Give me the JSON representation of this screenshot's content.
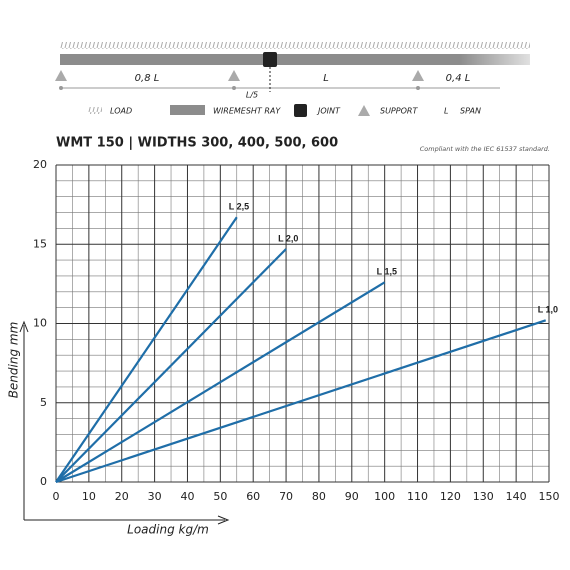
{
  "diagram": {
    "spans": [
      "0,8 L",
      "L",
      "0,4 L"
    ],
    "joint_offset": "L/5",
    "legend": [
      {
        "symbol": "LOAD"
      },
      {
        "symbol": "WIREMESHT RAY"
      },
      {
        "symbol": "JOINT"
      },
      {
        "symbol": "SUPPORT"
      }
    ],
    "span_symbol": "L",
    "span_text": "SPAN"
  },
  "chart_data": {
    "type": "line",
    "title": "WMT 150  | WIDTHS 300, 400, 500, 600",
    "subtitle": "Compliant with the IEC 61537 standard.",
    "x_label": "Loading kg/m",
    "y_label": "Bending mm",
    "xlim": [
      0,
      150
    ],
    "ylim": [
      0,
      20
    ],
    "xticks": [
      0,
      10,
      20,
      30,
      40,
      50,
      60,
      70,
      80,
      90,
      100,
      110,
      120,
      130,
      140,
      150
    ],
    "yticks": [
      0,
      5,
      10,
      15,
      20
    ],
    "grid": true,
    "series": [
      {
        "name": "L 2,5",
        "color": "#1f6ea8",
        "x": [
          0,
          55
        ],
        "values": [
          0,
          16.7
        ]
      },
      {
        "name": "L 2,0",
        "color": "#1f6ea8",
        "x": [
          0,
          70
        ],
        "values": [
          0,
          14.7
        ]
      },
      {
        "name": "L 1,5",
        "color": "#1f6ea8",
        "x": [
          0,
          100
        ],
        "values": [
          0,
          12.6
        ]
      },
      {
        "name": "L 1,0",
        "color": "#1f6ea8",
        "x": [
          0,
          149
        ],
        "values": [
          0,
          10.2
        ]
      }
    ]
  }
}
